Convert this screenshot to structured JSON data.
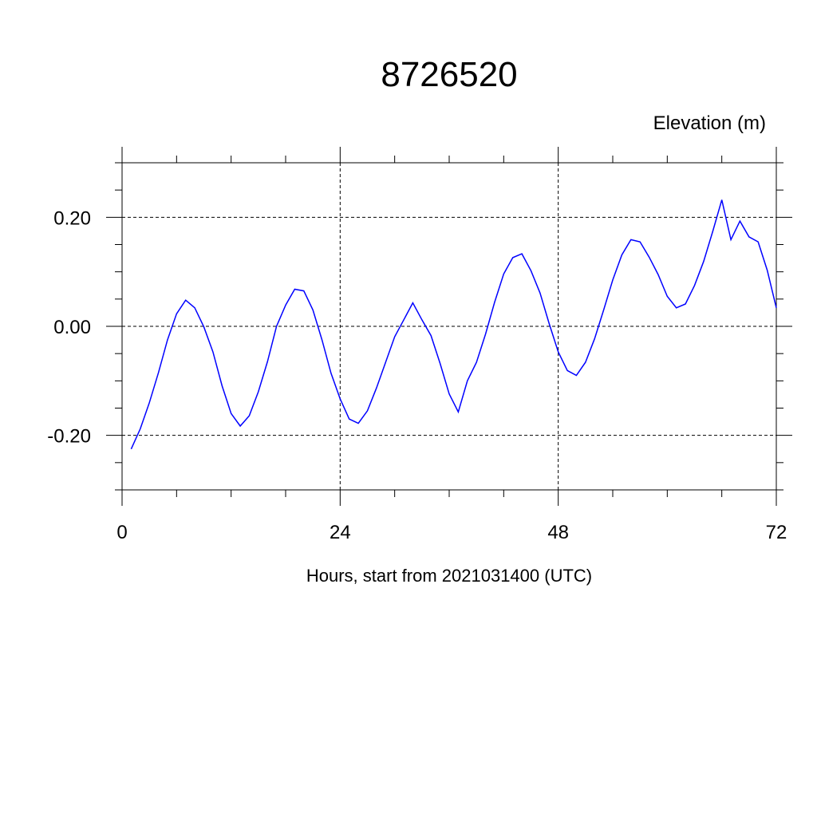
{
  "chart_data": {
    "type": "line",
    "title": "8726520",
    "ylabel": "Elevation (m)",
    "xlabel": "Hours, start from 2021031400 (UTC)",
    "xlim": [
      0,
      72
    ],
    "ylim": [
      -0.3,
      0.3
    ],
    "xticks": [
      0,
      24,
      48,
      72
    ],
    "xtick_labels": [
      "0",
      "24",
      "48",
      "72"
    ],
    "yticks": [
      -0.2,
      0.0,
      0.2
    ],
    "ytick_labels": [
      "-0.20",
      "0.00",
      "0.20"
    ],
    "grid": true,
    "line_color": "#0000ff",
    "series": [
      {
        "x": [
          1,
          2,
          3,
          4,
          5,
          6,
          7,
          8,
          9,
          10,
          11,
          12,
          13,
          14,
          15,
          16,
          17,
          18,
          19,
          20,
          21,
          22,
          23,
          24,
          25,
          26,
          27,
          28,
          29,
          30,
          31,
          32,
          33,
          34,
          35,
          36,
          37,
          38,
          39,
          40,
          41,
          42,
          43,
          44,
          45,
          46,
          47,
          48,
          49,
          50,
          51,
          52,
          53,
          54,
          55,
          56,
          57,
          58,
          59,
          60,
          61,
          62,
          63,
          64,
          65,
          66,
          67,
          68,
          69,
          70,
          71,
          72
        ],
        "y": [
          -0.225,
          -0.188,
          -0.14,
          -0.085,
          -0.025,
          0.023,
          0.048,
          0.034,
          -0.001,
          -0.047,
          -0.109,
          -0.16,
          -0.183,
          -0.164,
          -0.12,
          -0.065,
          0.0,
          0.039,
          0.068,
          0.065,
          0.03,
          -0.025,
          -0.086,
          -0.133,
          -0.17,
          -0.178,
          -0.155,
          -0.113,
          -0.066,
          -0.019,
          0.012,
          0.043,
          0.012,
          -0.017,
          -0.068,
          -0.124,
          -0.157,
          -0.1,
          -0.066,
          -0.014,
          0.044,
          0.096,
          0.126,
          0.133,
          0.102,
          0.061,
          0.005,
          -0.047,
          -0.081,
          -0.09,
          -0.066,
          -0.023,
          0.03,
          0.085,
          0.131,
          0.159,
          0.155,
          0.127,
          0.095,
          0.055,
          0.034,
          0.041,
          0.075,
          0.119,
          0.174,
          0.232,
          0.159,
          0.193,
          0.164,
          0.155,
          0.103,
          0.034
        ]
      }
    ]
  }
}
